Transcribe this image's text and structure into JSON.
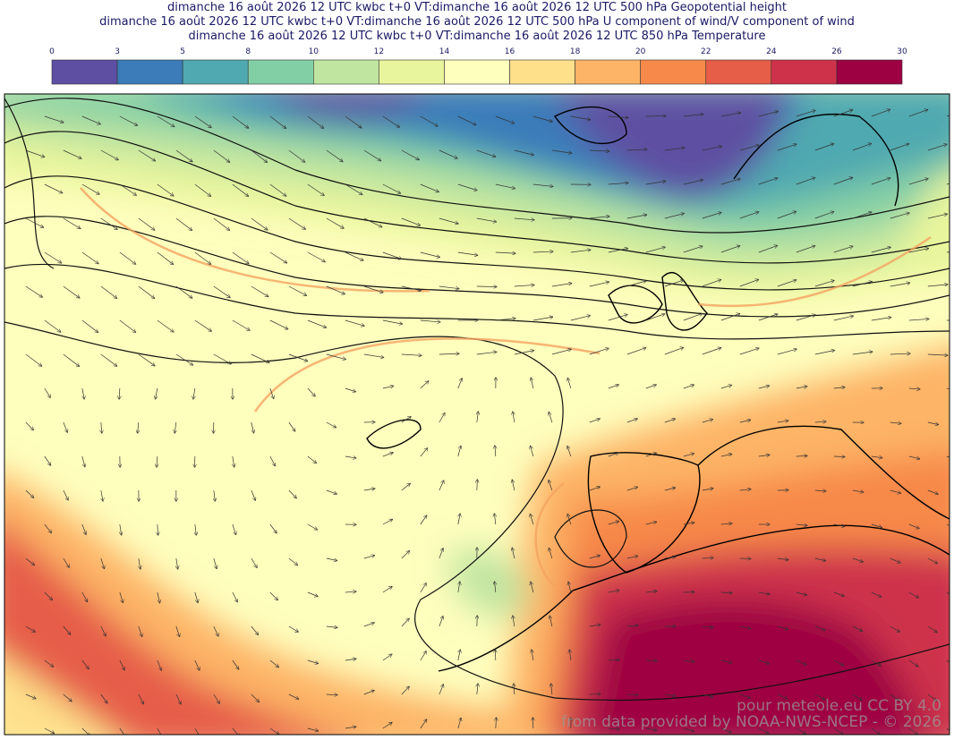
{
  "header": {
    "lines": [
      "dimanche 16 août 2026 12 UTC kwbc t+0 VT:dimanche 16 août 2026 12 UTC 500 hPa  Geopotential height",
      "dimanche 16 août 2026 12 UTC kwbc t+0 VT:dimanche 16 août 2026 12 UTC 500 hPa  U component of wind/V component of wind",
      "dimanche 16 août 2026 12 UTC kwbc t+0 VT:dimanche 16 août 2026 12 UTC 850 hPa  Temperature"
    ]
  },
  "colorbar": {
    "ticks": [
      0,
      3,
      5,
      8,
      10,
      12,
      14,
      16,
      18,
      20,
      22,
      24,
      26,
      30
    ],
    "colors": [
      "#5e4fa2",
      "#3b7cb9",
      "#50a9b0",
      "#83cfa5",
      "#bfe5a0",
      "#e8f59c",
      "#fefebd",
      "#fee08b",
      "#fdb466",
      "#f7894a",
      "#e65d48",
      "#ce324b",
      "#9e0142"
    ]
  },
  "watermark": {
    "line1": "pour meteole.eu  CC BY 4.0",
    "line2": "from data provided by NOAA-NWS-NCEP - © 2026"
  }
}
